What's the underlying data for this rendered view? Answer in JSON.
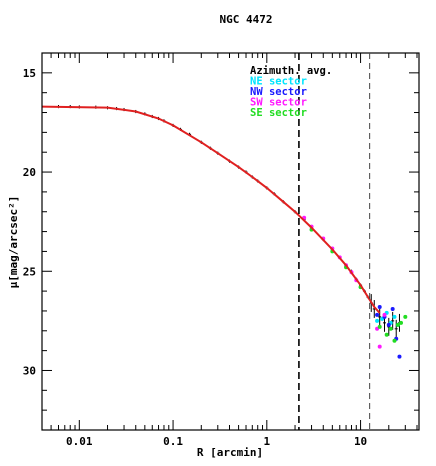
{
  "chart_data": {
    "type": "scatter",
    "title": "NGC 4472",
    "xlabel": "R [arcmin]",
    "ylabel": "μ[mag/arcsec²]",
    "x_scale": "log",
    "xlim": [
      0.004,
      42
    ],
    "ylim": [
      33,
      14
    ],
    "x_ticks": [
      {
        "value": 0.01,
        "label": "0.01"
      },
      {
        "value": 0.1,
        "label": "0.1"
      },
      {
        "value": 1,
        "label": "1"
      },
      {
        "value": 10,
        "label": "10"
      }
    ],
    "y_ticks": [
      {
        "value": 15,
        "label": "15"
      },
      {
        "value": 20,
        "label": "20"
      },
      {
        "value": 25,
        "label": "25"
      },
      {
        "value": 30,
        "label": "30"
      }
    ],
    "vlines": [
      {
        "x": 2.2,
        "style": "dashed-thick"
      },
      {
        "x": 12.5,
        "style": "dashed-thin"
      }
    ],
    "legend": [
      {
        "label": "Azimuth. avg.",
        "color": "#000000"
      },
      {
        "label": "NE sector",
        "color": "#00e5ff"
      },
      {
        "label": "NW sector",
        "color": "#1a1aff"
      },
      {
        "label": "SW sector",
        "color": "#ff1aff"
      },
      {
        "label": "SE sector",
        "color": "#22dd22"
      }
    ],
    "model_curve": {
      "color": "#e02020",
      "x": [
        0.004,
        0.02,
        0.04,
        0.07,
        0.1,
        0.2,
        0.3,
        0.5,
        0.7,
        1.0,
        1.5,
        2.0,
        3.0,
        5.0,
        7.0,
        10.0,
        12.0,
        14.0,
        16.0
      ],
      "y": [
        16.7,
        16.75,
        16.95,
        17.3,
        17.65,
        18.5,
        19.05,
        19.75,
        20.25,
        20.8,
        21.5,
        22.0,
        22.8,
        23.9,
        24.7,
        25.7,
        26.3,
        26.8,
        27.1
      ]
    },
    "series": [
      {
        "name": "Azimuth. avg.",
        "color": "#000000",
        "marker": "errorbar",
        "x": [
          0.004,
          0.006,
          0.008,
          0.01,
          0.015,
          0.02,
          0.025,
          0.03,
          0.04,
          0.05,
          0.06,
          0.07,
          0.08,
          0.1,
          0.12,
          0.15,
          0.2,
          0.25,
          0.3,
          0.4,
          0.5,
          0.6,
          0.7,
          0.8,
          1.0,
          1.2,
          1.5,
          2.0,
          2.5,
          3.0,
          4.0,
          5.0,
          6.0,
          7.0,
          8.0,
          9.0,
          10.0,
          11.0,
          12.0,
          13.0,
          14.0,
          16.0,
          18.0,
          20.0,
          22.0,
          24.0,
          26.0
        ],
        "y": [
          16.7,
          16.7,
          16.7,
          16.72,
          16.73,
          16.76,
          16.8,
          16.85,
          16.95,
          17.07,
          17.2,
          17.3,
          17.42,
          17.65,
          17.85,
          18.1,
          18.5,
          18.8,
          19.05,
          19.45,
          19.75,
          20.0,
          20.25,
          20.45,
          20.8,
          21.1,
          21.5,
          22.0,
          22.4,
          22.8,
          23.4,
          23.9,
          24.3,
          24.7,
          25.0,
          25.4,
          25.7,
          26.0,
          26.3,
          26.6,
          26.9,
          27.3,
          27.6,
          27.8,
          27.5,
          27.9,
          27.6
        ]
      },
      {
        "name": "NE sector",
        "color": "#00e5ff",
        "marker": "dot",
        "x": [
          15.0,
          17.0,
          19.0,
          21.0,
          23.0,
          25.0
        ],
        "y": [
          27.5,
          27.4,
          27.1,
          27.6,
          27.3,
          27.7
        ]
      },
      {
        "name": "NW sector",
        "color": "#1a1aff",
        "marker": "dot",
        "x": [
          15.0,
          16.0,
          18.0,
          20.0,
          22.0,
          24.0,
          26.0
        ],
        "y": [
          27.2,
          26.8,
          27.3,
          27.7,
          26.9,
          28.4,
          29.3
        ]
      },
      {
        "name": "SW sector",
        "color": "#ff1aff",
        "marker": "dot",
        "x": [
          2.5,
          3.0,
          4.0,
          5.0,
          6.0,
          7.0,
          8.0,
          9.0,
          15.0,
          16.0,
          18.0
        ],
        "y": [
          22.3,
          22.75,
          23.35,
          23.85,
          24.3,
          24.7,
          25.05,
          25.45,
          27.9,
          28.8,
          27.2
        ]
      },
      {
        "name": "SE sector",
        "color": "#22dd22",
        "marker": "dot",
        "x": [
          3.0,
          5.0,
          7.0,
          10.0,
          16.0,
          19.0,
          21.0,
          23.0,
          25.0,
          27.0,
          30.0
        ],
        "y": [
          22.9,
          24.0,
          24.8,
          25.8,
          27.8,
          28.2,
          27.9,
          28.5,
          27.7,
          27.6,
          27.3
        ]
      }
    ]
  }
}
